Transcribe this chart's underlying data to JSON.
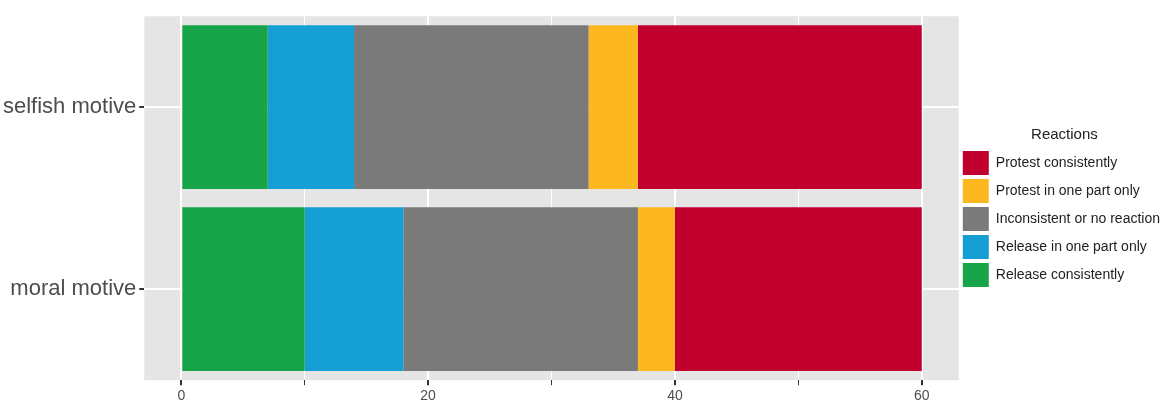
{
  "chart_data": {
    "type": "bar",
    "orientation": "horizontal",
    "stacked": true,
    "categories": [
      "selfish motive",
      "moral motive"
    ],
    "series": [
      {
        "name": "Release consistently",
        "color": "#18a54a",
        "values": [
          7,
          10
        ]
      },
      {
        "name": "Release in one part only",
        "color": "#169fd4",
        "values": [
          7,
          8
        ]
      },
      {
        "name": "Inconsistent or no reaction",
        "color": "#7a7a7a",
        "values": [
          19,
          19
        ]
      },
      {
        "name": "Protest in one part only",
        "color": "#fdb71f",
        "values": [
          4,
          3
        ]
      },
      {
        "name": "Protest consistently",
        "color": "#c20030",
        "values": [
          23,
          20
        ]
      }
    ],
    "xlim": [
      -3,
      63
    ],
    "xticks": [
      0,
      {
        "value": 10,
        "label": null
      },
      20,
      {
        "value": 30,
        "label": null
      },
      40,
      {
        "value": 50,
        "label": null
      },
      60
    ],
    "grid": true,
    "legend": "right",
    "legend_title": "Reactions"
  }
}
